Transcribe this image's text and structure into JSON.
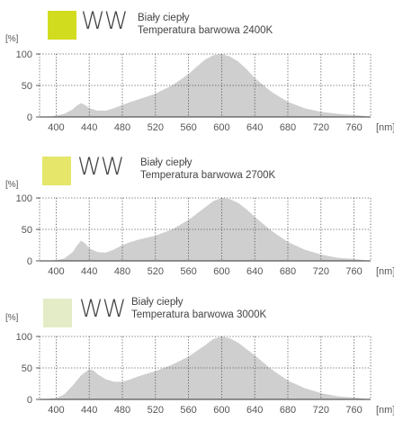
{
  "unit_y": "[%]",
  "unit_x": "[nm]",
  "chart_data": [
    {
      "type": "area",
      "model": "WW",
      "name": "Biały ciepły",
      "subtitle": "Temperatura barwowa 2400K",
      "swatch_color": "#d2dc1e",
      "area_color": "#cfcfcf",
      "xlim": [
        380,
        780
      ],
      "ylim": [
        0,
        100
      ],
      "x_ticks": [
        400,
        440,
        480,
        520,
        560,
        600,
        640,
        680,
        720,
        760
      ],
      "y_ticks": [
        0,
        50,
        100
      ],
      "x": [
        380,
        390,
        400,
        410,
        420,
        425,
        430,
        435,
        440,
        450,
        460,
        470,
        480,
        490,
        500,
        520,
        540,
        560,
        570,
        580,
        590,
        600,
        610,
        620,
        630,
        640,
        660,
        680,
        700,
        720,
        740,
        760,
        770,
        780
      ],
      "values": [
        0,
        0,
        2,
        5,
        12,
        18,
        22,
        19,
        14,
        10,
        10,
        14,
        19,
        24,
        28,
        37,
        50,
        68,
        80,
        91,
        98,
        100,
        96,
        88,
        76,
        62,
        40,
        24,
        14,
        8,
        5,
        3,
        2,
        0
      ]
    },
    {
      "type": "area",
      "model": "WW",
      "name": "Biały ciepły",
      "subtitle": "Temperatura barwowa 2700K",
      "swatch_color": "#e5e66a",
      "area_color": "#cfcfcf",
      "xlim": [
        380,
        780
      ],
      "ylim": [
        0,
        100
      ],
      "x_ticks": [
        400,
        440,
        480,
        520,
        560,
        600,
        640,
        680,
        720,
        760
      ],
      "y_ticks": [
        0,
        50,
        100
      ],
      "x": [
        380,
        400,
        410,
        420,
        425,
        430,
        435,
        440,
        450,
        460,
        470,
        480,
        490,
        500,
        520,
        540,
        560,
        580,
        590,
        600,
        610,
        620,
        630,
        640,
        660,
        680,
        700,
        720,
        740,
        760,
        780
      ],
      "values": [
        0,
        1,
        4,
        14,
        24,
        32,
        28,
        20,
        14,
        13,
        18,
        25,
        30,
        34,
        40,
        50,
        65,
        85,
        95,
        100,
        98,
        92,
        82,
        70,
        48,
        30,
        18,
        10,
        5,
        3,
        0
      ]
    },
    {
      "type": "area",
      "model": "WW",
      "name": "Biały ciepły",
      "subtitle": "Temperatura barwowa 3000K",
      "swatch_color": "#e3ecc6",
      "area_color": "#cfcfcf",
      "xlim": [
        380,
        780
      ],
      "ylim": [
        0,
        100
      ],
      "x_ticks": [
        400,
        440,
        480,
        520,
        560,
        600,
        640,
        680,
        720,
        760
      ],
      "y_ticks": [
        0,
        50,
        100
      ],
      "x": [
        380,
        400,
        410,
        420,
        430,
        440,
        445,
        450,
        460,
        470,
        480,
        490,
        500,
        520,
        540,
        560,
        580,
        590,
        600,
        610,
        620,
        640,
        660,
        680,
        700,
        720,
        740,
        760,
        780
      ],
      "values": [
        0,
        2,
        8,
        22,
        38,
        48,
        46,
        40,
        32,
        28,
        28,
        32,
        37,
        45,
        55,
        68,
        86,
        96,
        100,
        97,
        90,
        70,
        48,
        30,
        18,
        10,
        5,
        3,
        0
      ]
    }
  ]
}
